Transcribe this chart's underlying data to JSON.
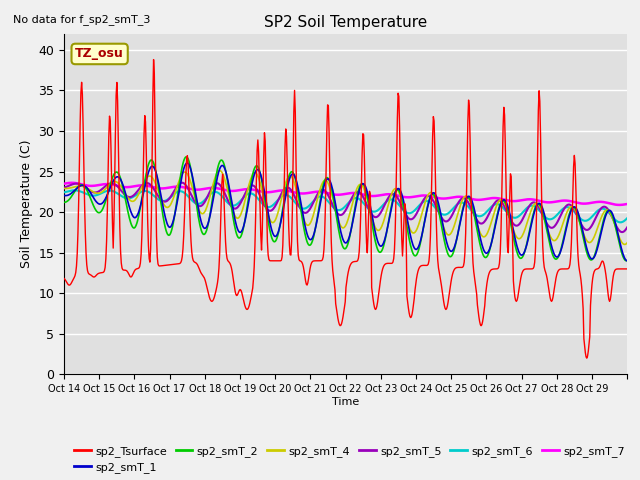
{
  "title": "SP2 Soil Temperature",
  "subtitle": "No data for f_sp2_smT_3",
  "ylabel": "Soil Temperature (C)",
  "xlabel": "Time",
  "tz_label": "TZ_osu",
  "ylim": [
    0,
    42
  ],
  "yticks": [
    0,
    5,
    10,
    15,
    20,
    25,
    30,
    35,
    40
  ],
  "x_labels": [
    "Oct 14",
    "Oct 15",
    "Oct 16",
    "Oct 17",
    "Oct 18",
    "Oct 19",
    "Oct 20",
    "Oct 21",
    "Oct 22",
    "Oct 23",
    "Oct 24",
    "Oct 25",
    "Oct 26",
    "Oct 27",
    "Oct 28",
    "Oct 29"
  ],
  "colors": {
    "sp2_Tsurface": "#ff0000",
    "sp2_smT_1": "#0000cc",
    "sp2_smT_2": "#00cc00",
    "sp2_smT_4": "#cccc00",
    "sp2_smT_5": "#9900bb",
    "sp2_smT_6": "#00cccc",
    "sp2_smT_7": "#ff00ff"
  },
  "background_color": "#e0e0e0",
  "grid_color": "#ffffff",
  "fig_color": "#f0f0f0"
}
